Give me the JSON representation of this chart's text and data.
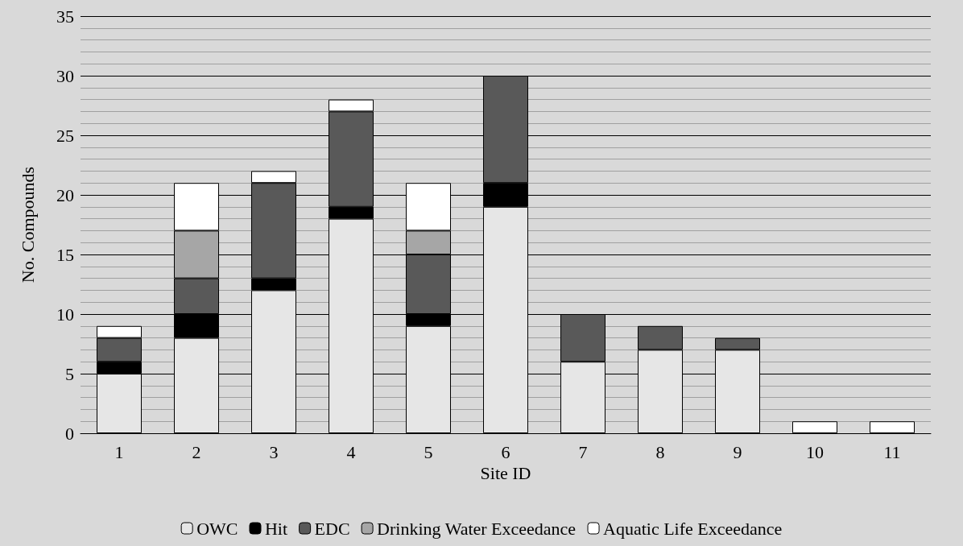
{
  "chart_data": {
    "type": "bar",
    "stacked": true,
    "xlabel": "Site ID",
    "ylabel": "No. Compounds",
    "categories": [
      "1",
      "2",
      "3",
      "4",
      "5",
      "6",
      "7",
      "8",
      "9",
      "10",
      "11"
    ],
    "series": [
      {
        "name": "OWC",
        "color": "#e6e6e6",
        "values": [
          5,
          8,
          12,
          18,
          9,
          19,
          6,
          7,
          7,
          0,
          0
        ]
      },
      {
        "name": "Hit",
        "color": "#000000",
        "values": [
          1,
          2,
          1,
          1,
          1,
          2,
          0,
          0,
          0,
          0,
          0
        ]
      },
      {
        "name": "EDC",
        "color": "#595959",
        "values": [
          2,
          3,
          8,
          8,
          5,
          9,
          4,
          2,
          1,
          0,
          0
        ]
      },
      {
        "name": "Drinking Water Exceedance",
        "color": "#a6a6a6",
        "values": [
          0,
          4,
          0,
          0,
          2,
          0,
          0,
          0,
          0,
          0,
          0
        ]
      },
      {
        "name": "Aquatic Life Exceedance",
        "color": "#ffffff",
        "values": [
          1,
          4,
          1,
          1,
          4,
          0,
          0,
          0,
          0,
          1,
          1
        ]
      }
    ],
    "ylim": [
      0,
      35
    ],
    "yticks": [
      0,
      5,
      10,
      15,
      20,
      25,
      30,
      35
    ],
    "grid": "y",
    "legend": "bottom"
  }
}
